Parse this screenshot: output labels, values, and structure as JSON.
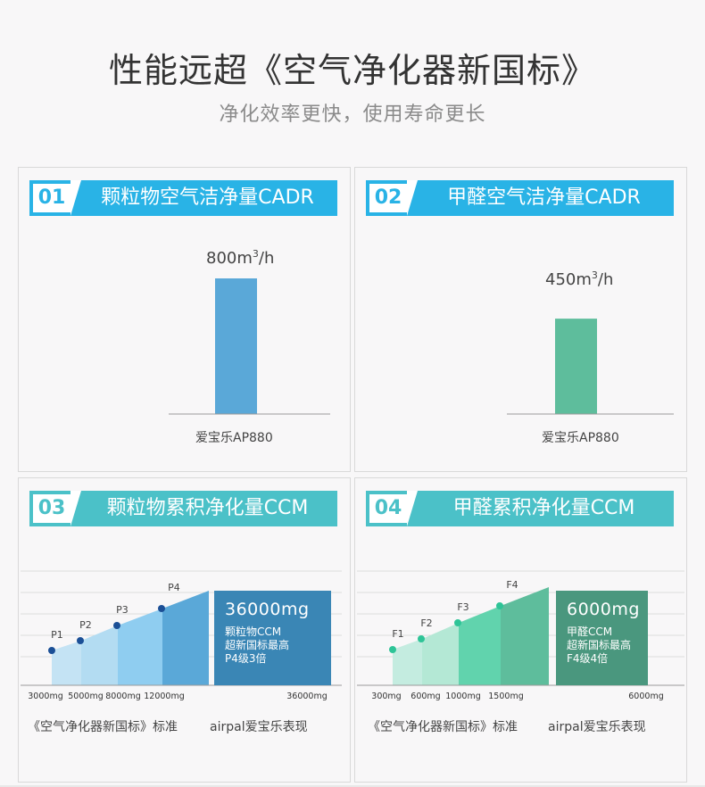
{
  "header": {
    "title": "性能远超《空气净化器新国标》",
    "subtitle": "净化效率更快，使用寿命更长"
  },
  "colors": {
    "blue_banner": "#29b3e6",
    "teal_banner": "#4bc1c8",
    "bar_blue": "#5aa8d8",
    "bar_green": "#5ebd9c",
    "box_blue": "#3a86b5",
    "box_green": "#4a977e"
  },
  "panels": [
    {
      "num": "01",
      "label": "颗粒物空气洁净量CADR"
    },
    {
      "num": "02",
      "label": "甲醛空气洁净量CADR"
    },
    {
      "num": "03",
      "label": "颗粒物累积净化量CCM"
    },
    {
      "num": "04",
      "label": "甲醛累积净化量CCM"
    }
  ],
  "chart_data": [
    {
      "type": "bar",
      "title": "颗粒物空气洁净量CADR",
      "categories": [
        "爱宝乐AP880"
      ],
      "values": [
        800
      ],
      "value_label": "800m",
      "value_sup": "3",
      "value_unit": "/h",
      "ylim": [
        0,
        1000
      ]
    },
    {
      "type": "bar",
      "title": "甲醛空气洁净量CADR",
      "categories": [
        "爱宝乐AP880"
      ],
      "values": [
        450
      ],
      "value_label": "450m",
      "value_sup": "3",
      "value_unit": "/h",
      "ylim": [
        0,
        800
      ]
    },
    {
      "type": "area",
      "title": "颗粒物累积净化量CCM",
      "levels": [
        "P1",
        "P2",
        "P3",
        "P4"
      ],
      "tick_labels": [
        "3000mg",
        "5000mg",
        "8000mg",
        "12000mg",
        "36000mg"
      ],
      "standard_label": "《空气净化器新国标》标准",
      "product_label": "airpal爱宝乐表现",
      "box": {
        "value": "36000mg",
        "lines": [
          "颗粒物CCM",
          "超新国标最高",
          "P4级3倍"
        ]
      }
    },
    {
      "type": "area",
      "title": "甲醛累积净化量CCM",
      "levels": [
        "F1",
        "F2",
        "F3",
        "F4"
      ],
      "tick_labels": [
        "300mg",
        "600mg",
        "1000mg",
        "1500mg",
        "6000mg"
      ],
      "standard_label": "《空气净化器新国标》标准",
      "product_label": "airpal爱宝乐表现",
      "box": {
        "value": "6000mg",
        "lines": [
          "甲醛CCM",
          "超新国标最高",
          "F4级4倍"
        ]
      }
    }
  ]
}
